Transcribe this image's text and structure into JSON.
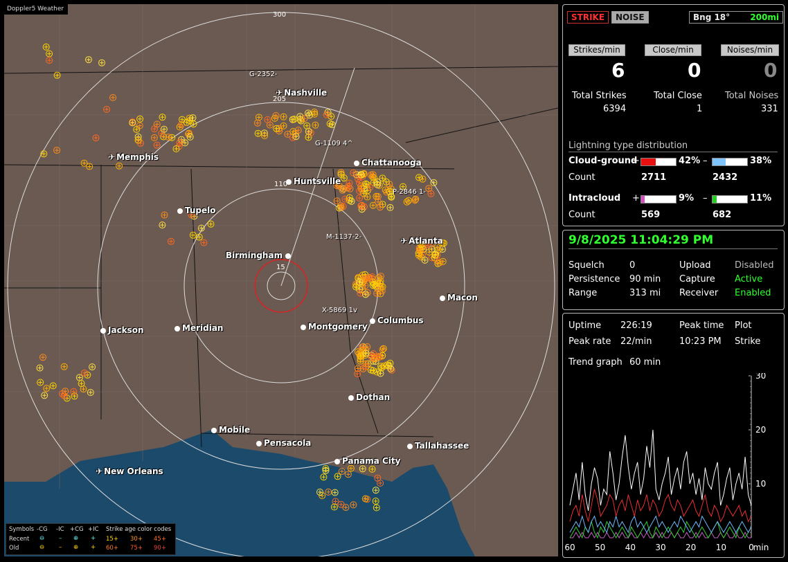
{
  "app_title": "Doppler5 Weather",
  "map": {
    "range_labels": [
      "300",
      "205",
      "110",
      "15"
    ],
    "cities": [
      {
        "name": "Nashville",
        "type": "airport"
      },
      {
        "name": "Memphis",
        "type": "airport"
      },
      {
        "name": "Chattanooga",
        "type": "city"
      },
      {
        "name": "Huntsville",
        "type": "city"
      },
      {
        "name": "Tupelo",
        "type": "city"
      },
      {
        "name": "Atlanta",
        "type": "airport"
      },
      {
        "name": "Birmingham",
        "type": "city"
      },
      {
        "name": "Macon",
        "type": "city"
      },
      {
        "name": "Jackson",
        "type": "airport"
      },
      {
        "name": "Meridian",
        "type": "city"
      },
      {
        "name": "Montgomery",
        "type": "city"
      },
      {
        "name": "Columbus",
        "type": "city"
      },
      {
        "name": "Dothan",
        "type": "city"
      },
      {
        "name": "Mobile",
        "type": "city"
      },
      {
        "name": "Pensacola",
        "type": "city"
      },
      {
        "name": "Tallahassee",
        "type": "city"
      },
      {
        "name": "Panama City",
        "type": "city"
      },
      {
        "name": "New Orleans",
        "type": "airport"
      }
    ],
    "storm_tags": [
      "G-2352-",
      "G-1109 4^",
      "P-2846 1-",
      "M-1137-2-",
      "X-5869 1v"
    ]
  },
  "legend": {
    "symbols_label": "Symbols",
    "cols": [
      "-CG",
      "-IC",
      "+CG",
      "+IC"
    ],
    "recent_label": "Recent",
    "old_label": "Old",
    "age_title": "Strike age color codes",
    "recent_ages": [
      "15+",
      "30+",
      "45+"
    ],
    "old_ages": [
      "60+",
      "75+",
      "90+"
    ]
  },
  "top": {
    "strike_btn": "STRIKE",
    "noise_btn": "NOISE",
    "bearing": "Bng 18°",
    "range": "200mi",
    "strikes_min_label": "Strikes/min",
    "close_min_label": "Close/min",
    "noises_min_label": "Noises/min",
    "strikes_min": "6",
    "close_min": "0",
    "noises_min": "0",
    "total_strikes_label": "Total Strikes",
    "total_close_label": "Total Close",
    "total_noises_label": "Total Noises",
    "total_strikes": "6394",
    "total_close": "1",
    "total_noises": "331",
    "dist_title": "Lightning type distribution",
    "cg_label": "Cloud-ground",
    "ic_label": "Intracloud",
    "count_label": "Count",
    "plus": "+",
    "minus": "–",
    "cg_pos_pct": "42%",
    "cg_neg_pct": "38%",
    "ic_pos_pct": "9%",
    "ic_neg_pct": "11%",
    "cg_pos_count": "2711",
    "cg_neg_count": "2432",
    "ic_pos_count": "569",
    "ic_neg_count": "682",
    "cg_pos_frac": 0.42,
    "cg_neg_frac": 0.38,
    "ic_pos_frac": 0.09,
    "ic_neg_frac": 0.11
  },
  "status": {
    "datetime": "9/8/2025 11:04:29 PM",
    "squelch_label": "Squelch",
    "squelch": "0",
    "persistence_label": "Persistence",
    "persistence": "90 min",
    "range_label": "Range",
    "range": "313 mi",
    "upload_label": "Upload",
    "upload": "Disabled",
    "capture_label": "Capture",
    "capture": "Active",
    "receiver_label": "Receiver",
    "receiver": "Enabled"
  },
  "stats": {
    "uptime_label": "Uptime",
    "uptime": "226:19",
    "peak_time_label": "Peak time",
    "peak_time": "10:23 PM",
    "plot_label": "Plot",
    "plot": "Strike",
    "peak_rate_label": "Peak rate",
    "peak_rate": "22/min",
    "trend_label": "Trend graph",
    "trend": "60 min"
  },
  "chart_data": {
    "type": "line",
    "x_ticks": [
      "60",
      "50",
      "40",
      "30",
      "20",
      "10",
      "0"
    ],
    "x_unit": "min",
    "y_ticks": [
      "30",
      "20",
      "10"
    ],
    "ylim": [
      0,
      30
    ],
    "xlim": [
      60,
      0
    ],
    "series": [
      {
        "color": "#ffffff",
        "values": [
          6,
          9,
          12,
          7,
          14,
          8,
          5,
          10,
          13,
          11,
          6,
          9,
          8,
          16,
          12,
          7,
          10,
          15,
          19,
          13,
          9,
          12,
          14,
          8,
          11,
          17,
          13,
          20,
          9,
          7,
          10,
          12,
          15,
          8,
          11,
          13,
          9,
          14,
          16,
          10,
          12,
          8,
          11,
          7,
          13,
          10,
          9,
          12,
          14,
          6,
          8,
          11,
          13,
          7,
          10,
          12,
          9,
          15,
          8,
          6
        ]
      },
      {
        "color": "#e83030",
        "values": [
          3,
          5,
          6,
          4,
          8,
          5,
          3,
          6,
          9,
          7,
          4,
          5,
          6,
          8,
          7,
          4,
          6,
          7,
          5,
          8,
          6,
          4,
          7,
          5,
          6,
          8,
          5,
          7,
          6,
          4,
          5,
          7,
          8,
          6,
          5,
          7,
          6,
          4,
          5,
          6,
          7,
          5,
          4,
          6,
          8,
          5,
          4,
          6,
          5,
          3,
          4,
          6,
          5,
          4,
          5,
          6,
          4,
          5,
          3,
          4
        ]
      },
      {
        "color": "#6fb8ff",
        "values": [
          1,
          2,
          3,
          2,
          4,
          2,
          1,
          3,
          4,
          2,
          3,
          2,
          1,
          3,
          2,
          4,
          2,
          3,
          2,
          1,
          3,
          4,
          2,
          3,
          2,
          1,
          2,
          3,
          4,
          2,
          3,
          2,
          1,
          2,
          3,
          2,
          4,
          3,
          2,
          1,
          2,
          3,
          2,
          4,
          3,
          2,
          1,
          2,
          3,
          2,
          1,
          2,
          3,
          2,
          1,
          2,
          3,
          2,
          1,
          2
        ]
      },
      {
        "color": "#30d030",
        "values": [
          0,
          1,
          2,
          1,
          0,
          2,
          1,
          3,
          1,
          0,
          2,
          1,
          3,
          2,
          1,
          0,
          1,
          2,
          1,
          0,
          2,
          1,
          0,
          1,
          2,
          3,
          1,
          0,
          2,
          1,
          0,
          1,
          2,
          1,
          0,
          1,
          2,
          1,
          3,
          2,
          1,
          0,
          1,
          2,
          1,
          0,
          1,
          2,
          3,
          1,
          0,
          1,
          2,
          1,
          0,
          2,
          1,
          0,
          1,
          2
        ]
      },
      {
        "color": "#c060c0",
        "values": [
          0,
          0,
          1,
          0,
          1,
          0,
          0,
          1,
          0,
          1,
          0,
          0,
          1,
          0,
          0,
          1,
          0,
          1,
          0,
          0,
          1,
          0,
          0,
          1,
          0,
          1,
          0,
          0,
          1,
          0,
          1,
          0,
          0,
          1,
          0,
          1,
          0,
          0,
          1,
          0,
          0,
          1,
          0,
          1,
          0,
          0,
          1,
          0,
          0,
          1,
          0,
          1,
          0,
          0,
          1,
          0,
          0,
          1,
          0,
          0
        ]
      }
    ]
  }
}
